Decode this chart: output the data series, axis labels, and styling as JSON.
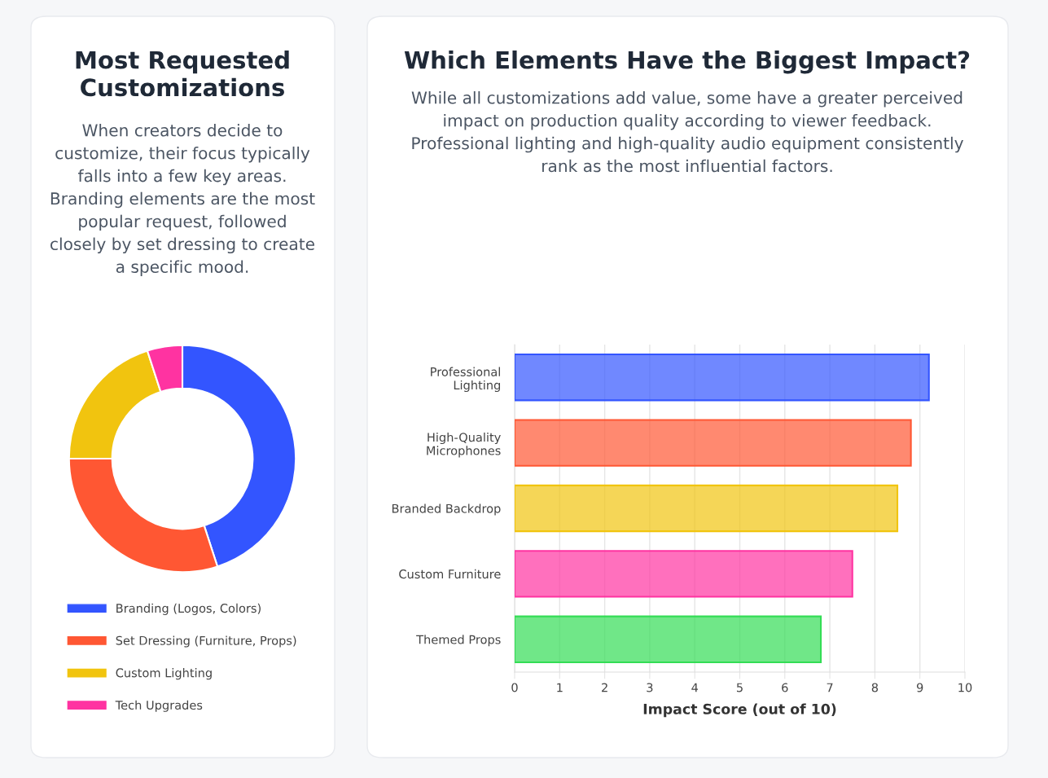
{
  "chart_data": [
    {
      "type": "donut",
      "title": "Most Requested Customizations",
      "subtitle": "When creators decide to customize, their focus typically falls into a few key areas. Branding elements are the most popular request, followed closely by set dressing to create a specific mood.",
      "categories": [
        "Branding (Logos, Colors)",
        "Set Dressing (Furniture, Props)",
        "Custom Lighting",
        "Tech Upgrades"
      ],
      "values": [
        45,
        30,
        20,
        5
      ],
      "colors": [
        "#3355ff",
        "#ff5733",
        "#f1c40f",
        "#ff33a1"
      ],
      "legend": "bottom"
    },
    {
      "type": "bar",
      "orientation": "horizontal",
      "title": "Which Elements Have the Biggest Impact?",
      "subtitle": "While all customizations add value, some have a greater perceived impact on production quality according to viewer feedback. Professional lighting and high-quality audio equipment consistently rank as the most influential factors.",
      "categories": [
        "Professional\nLighting",
        "High-Quality\nMicrophones",
        "Branded Backdrop",
        "Custom Furniture",
        "Themed Props"
      ],
      "values": [
        9.2,
        8.8,
        8.5,
        7.5,
        6.8
      ],
      "colors": [
        "#3355ff",
        "#ff5733",
        "#f1c40f",
        "#ff33a1",
        "#33dd55"
      ],
      "xlabel": "Impact Score (out of 10)",
      "xlim": [
        0,
        10
      ],
      "xticks": [
        0,
        1,
        2,
        3,
        4,
        5,
        6,
        7,
        8,
        9,
        10
      ],
      "grid": "x",
      "legend": false
    }
  ]
}
